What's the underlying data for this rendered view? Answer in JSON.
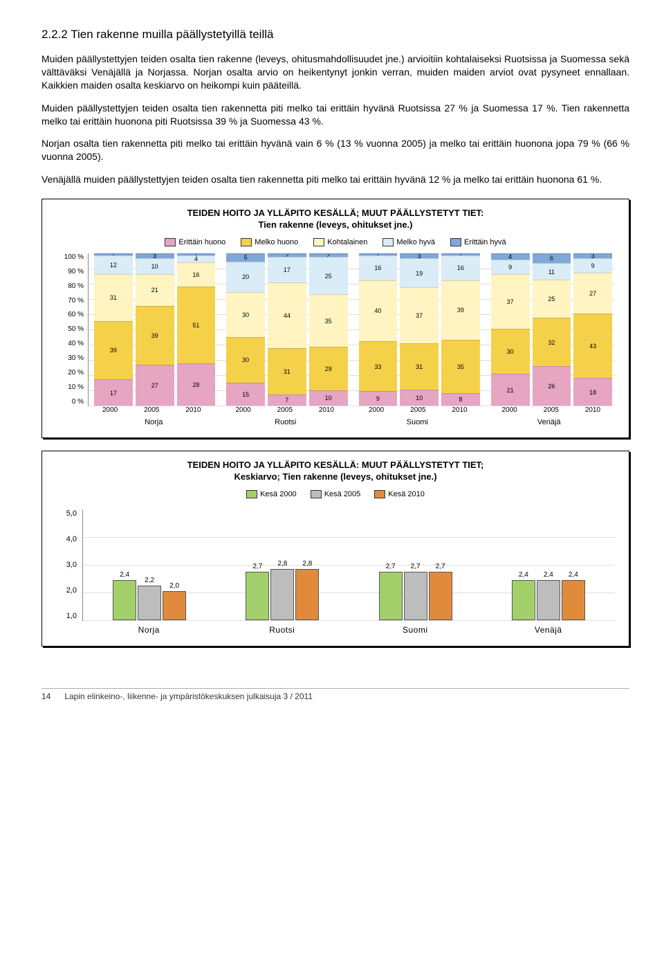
{
  "heading": "2.2.2 Tien rakenne muilla päällystetyillä teillä",
  "paragraphs": [
    "Muiden päällystettyjen teiden osalta tien rakenne (leveys, ohitusmahdollisuudet jne.) arvioitiin kohtalaiseksi Ruotsissa ja Suomessa sekä välttäväksi Venäjällä ja Norjassa. Norjan osalta arvio on heikentynyt jonkin verran, muiden maiden arviot ovat pysyneet ennallaan. Kaikkien maiden osalta keskiarvo on heikompi kuin pääteillä.",
    "Muiden päällystettyjen teiden osalta tien rakennetta piti melko tai erittäin hyvänä Ruotsissa 27 % ja Suomessa 17 %. Tien rakennetta melko tai erittäin huonona piti Ruotsissa 39 % ja Suomessa 43 %.",
    "Norjan osalta tien rakennetta piti melko tai erittäin hyvänä vain 6 % (13 % vuonna 2005) ja melko tai erittäin huonona jopa 79 % (66 % vuonna 2005).",
    "Venäjällä muiden päällystettyjen teiden osalta tien rakennetta piti melko tai erittäin hyvänä 12 % ja melko tai erittäin huonona 61 %."
  ],
  "chart1": {
    "title_l1": "TEIDEN HOITO JA YLLÄPITO KESÄLLÄ; MUUT PÄÄLLYSTETYT TIET:",
    "title_l2": "Tien rakenne (leveys, ohitukset jne.)",
    "categories": [
      "Erittäin huono",
      "Melko huono",
      "Kohtalainen",
      "Melko hyvä",
      "Erittäin hyvä"
    ],
    "cat_colors": [
      "#e6a5c0",
      "#f5d14a",
      "#fff4c2",
      "#d9ecf7",
      "#7fa8d9"
    ],
    "yticks": [
      "100 %",
      "90 %",
      "80 %",
      "70 %",
      "60 %",
      "50 %",
      "40 %",
      "30 %",
      "20 %",
      "10 %",
      "0 %"
    ],
    "years": [
      "2000",
      "2005",
      "2010",
      "2000",
      "2005",
      "2010",
      "2000",
      "2005",
      "2010",
      "2000",
      "2005",
      "2010"
    ],
    "groups": [
      "Norja",
      "Ruotsi",
      "Suomi",
      "Venäjä"
    ],
    "bars": [
      [
        17,
        39,
        31,
        12,
        1
      ],
      [
        27,
        39,
        21,
        10,
        3
      ],
      [
        28,
        51,
        16,
        4,
        1
      ],
      [
        15,
        30,
        30,
        20,
        5
      ],
      [
        7,
        31,
        44,
        17,
        2
      ],
      [
        10,
        29,
        35,
        25,
        2
      ],
      [
        9,
        33,
        40,
        16,
        1
      ],
      [
        10,
        31,
        37,
        19,
        3
      ],
      [
        8,
        35,
        39,
        16,
        1
      ],
      [
        21,
        30,
        37,
        9,
        4
      ],
      [
        26,
        32,
        25,
        11,
        6
      ],
      [
        18,
        43,
        27,
        9,
        3
      ]
    ]
  },
  "chart2": {
    "title_l1": "TEIDEN HOITO JA YLLÄPITO KESÄLLÄ: MUUT PÄÄLLYSTETYT TIET;",
    "title_l2": "Keskiarvo; Tien rakenne (leveys, ohitukset jne.)",
    "legend": [
      "Kesä 2000",
      "Kesä 2005",
      "Kesä 2010"
    ],
    "legend_colors": [
      "#a3cf6b",
      "#bdbdbd",
      "#e08b3b"
    ],
    "ymin": 1.0,
    "ymax": 5.0,
    "yticks": [
      "5,0",
      "4,0",
      "3,0",
      "2,0",
      "1,0"
    ],
    "groups": [
      "Norja",
      "Ruotsi",
      "Suomi",
      "Venäjä"
    ],
    "values": [
      [
        2.4,
        2.2,
        2.0
      ],
      [
        2.7,
        2.8,
        2.8
      ],
      [
        2.7,
        2.7,
        2.7
      ],
      [
        2.4,
        2.4,
        2.4
      ]
    ],
    "value_labels": [
      [
        "2,4",
        "2,2",
        "2,0"
      ],
      [
        "2,7",
        "2,8",
        "2,8"
      ],
      [
        "2,7",
        "2,7",
        "2,7"
      ],
      [
        "2,4",
        "2,4",
        "2,4"
      ]
    ]
  },
  "footer": {
    "page": "14",
    "text": "Lapin elinkeino-, liikenne- ja ympäristökeskuksen julkaisuja 3 / 2011"
  }
}
